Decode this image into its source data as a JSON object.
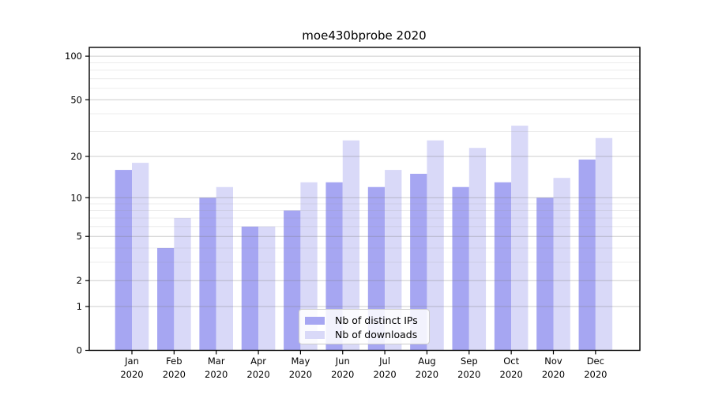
{
  "title": "moe430bprobe 2020",
  "chart_data": {
    "type": "bar",
    "title": "moe430bprobe 2020",
    "categories": [
      "Jan 2020",
      "Feb 2020",
      "Mar 2020",
      "Apr 2020",
      "May 2020",
      "Jun 2020",
      "Jul 2020",
      "Aug 2020",
      "Sep 2020",
      "Oct 2020",
      "Nov 2020",
      "Dec 2020"
    ],
    "series": [
      {
        "name": "Nb of distinct IPs",
        "color": "#a6a6f2",
        "values": [
          16,
          4,
          10,
          6,
          8,
          13,
          12,
          15,
          12,
          13,
          10,
          19
        ]
      },
      {
        "name": "Nb of downloads",
        "color": "#d9d9f8",
        "values": [
          18,
          7,
          12,
          6,
          13,
          26,
          16,
          26,
          23,
          33,
          14,
          27
        ]
      }
    ],
    "xlabel": "",
    "ylabel": "",
    "yscale": "log1p",
    "ylim": [
      0,
      115
    ],
    "yticks": [
      0,
      1,
      2,
      5,
      10,
      20,
      50,
      100
    ],
    "minor_gridlines": [
      3,
      4,
      6,
      7,
      8,
      9,
      30,
      40,
      60,
      70,
      80,
      90
    ],
    "grid": true,
    "legend_position": "lower center"
  },
  "colors": {
    "axis": "#000000",
    "major_grid": "rgba(120,120,120,0.38)",
    "minor_grid": "rgba(150,150,150,0.18)"
  }
}
